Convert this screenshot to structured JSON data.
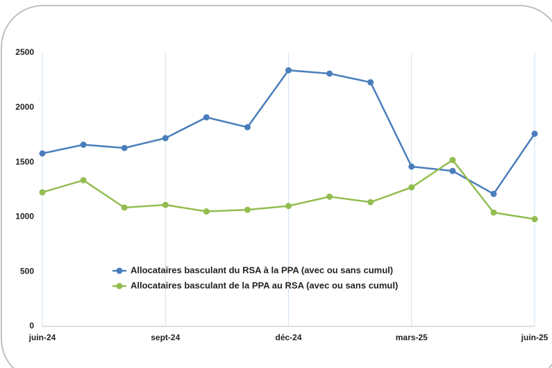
{
  "chart_data": {
    "type": "line",
    "categories": [
      "juin-24",
      null,
      null,
      "sept-24",
      null,
      null,
      "déc-24",
      null,
      null,
      "mars-25",
      null,
      null,
      "juin-25"
    ],
    "series": [
      {
        "name": "Allocataires basculant du RSA à la PPA (avec ou sans cumul)",
        "color": "#4a7ebb",
        "values": [
          1580,
          1660,
          1630,
          1720,
          1910,
          1820,
          2340,
          2310,
          2230,
          1460,
          1420,
          1210,
          1760
        ]
      },
      {
        "name": "Allocataires basculant de la PPA au RSA (avec ou sans cumul)",
        "color": "#92bd4f",
        "values": [
          1225,
          1335,
          1085,
          1110,
          1050,
          1065,
          1100,
          1185,
          1135,
          1270,
          1520,
          1040,
          980
        ]
      }
    ],
    "ylim": [
      0,
      2500
    ],
    "yticks": [
      0,
      500,
      1000,
      1500,
      2000,
      2500
    ],
    "grid": true
  }
}
